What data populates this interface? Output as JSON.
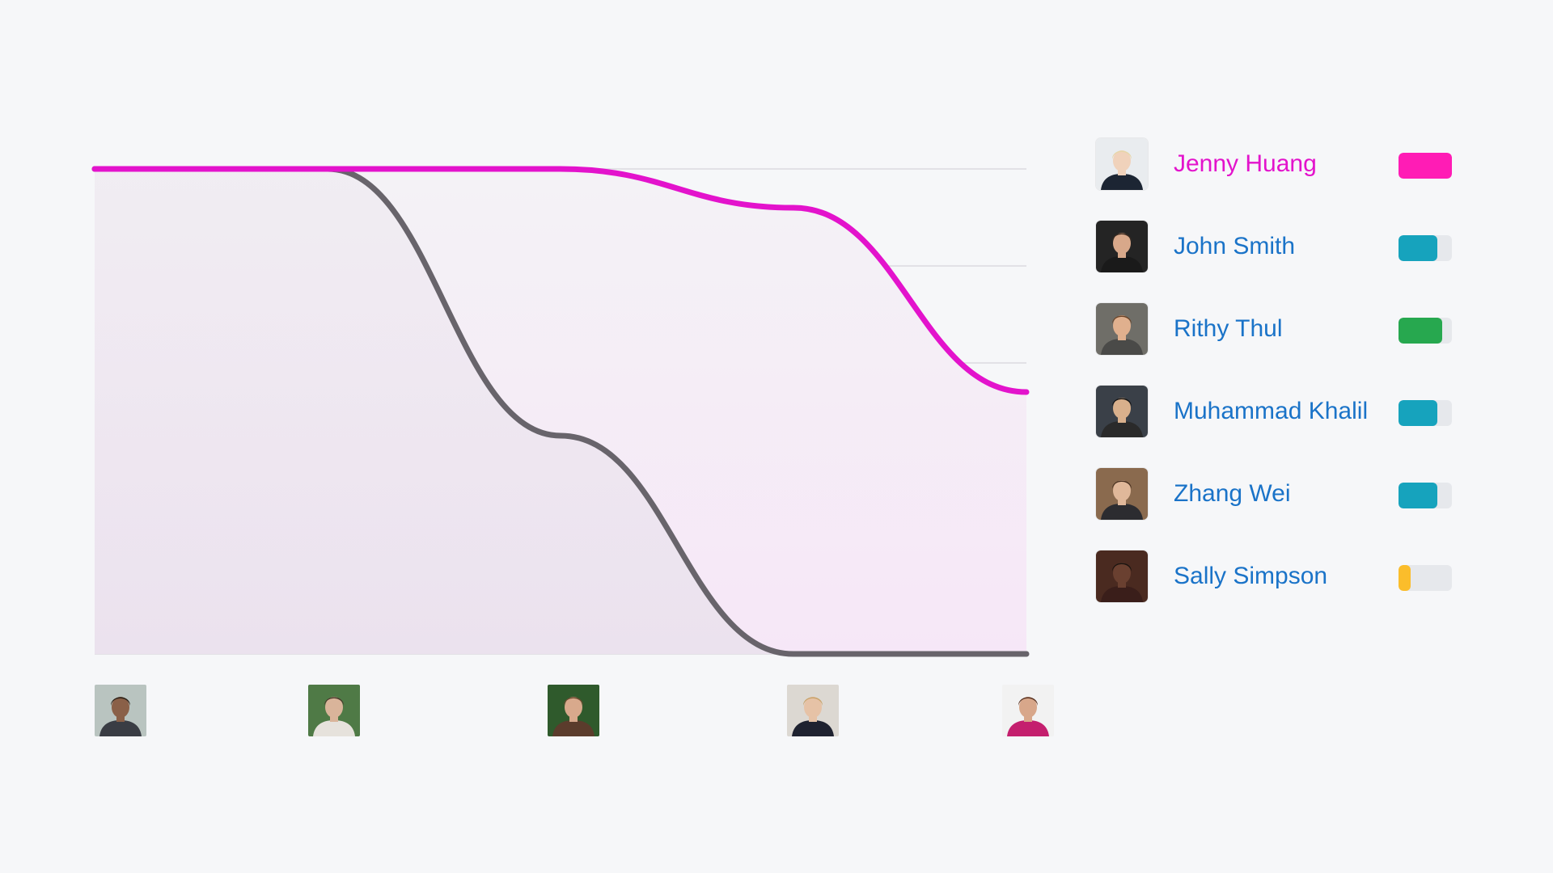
{
  "chart_data": {
    "type": "line",
    "x": [
      0,
      1,
      2,
      3,
      4
    ],
    "ylim": [
      0,
      5
    ],
    "grid": true,
    "series": [
      {
        "name": "Jenny Huang",
        "color": "#e313cc",
        "values": [
          5,
          5,
          5,
          4.6,
          2.7
        ]
      },
      {
        "name": "",
        "color": "#68646b",
        "values": [
          5,
          5,
          2.25,
          0,
          0
        ]
      }
    ]
  },
  "x_avatars": [
    {
      "icon": "person-portrait-icon",
      "skin": "#8a6048",
      "hair": "#2a2018",
      "shirt": "#3a3d44",
      "bg": "#b9c4c0"
    },
    {
      "icon": "person-portrait-icon",
      "skin": "#d9b49a",
      "hair": "#4a3a2c",
      "shirt": "#e6e2dc",
      "bg": "#4f7a46"
    },
    {
      "icon": "person-portrait-icon",
      "skin": "#d8a98c",
      "hair": "#6b4a30",
      "shirt": "#5b3c2c",
      "bg": "#2f5a2c"
    },
    {
      "icon": "person-portrait-icon",
      "skin": "#e6c2a6",
      "hair": "#c9a36a",
      "shirt": "#1f2230",
      "bg": "#dcd8d2"
    },
    {
      "icon": "person-portrait-icon",
      "skin": "#d8a78a",
      "hair": "#5a3322",
      "shirt": "#c41f6e",
      "bg": "#f2f2f2"
    }
  ],
  "legend": [
    {
      "name": "Jenny Huang",
      "name_color": "#e313cc",
      "bar_color": "#ff1cb5",
      "fill": 1.0,
      "skin": "#f0d2bb",
      "hair": "#e6d6a8",
      "shirt": "#1c2533",
      "bg": "#e9ecef"
    },
    {
      "name": "John Smith",
      "name_color": "#1a73c8",
      "bar_color": "#16a3bd",
      "fill": 0.72,
      "skin": "#d8a88a",
      "hair": "#3a2a20",
      "shirt": "#1a1a1a",
      "bg": "#242424"
    },
    {
      "name": "Rithy Thul",
      "name_color": "#1a73c8",
      "bar_color": "#27a84f",
      "fill": 0.82,
      "skin": "#e0b08e",
      "hair": "#6b4428",
      "shirt": "#4a4a48",
      "bg": "#6f6e68"
    },
    {
      "name": "Muhammad Khalil",
      "name_color": "#1a73c8",
      "bar_color": "#16a3bd",
      "fill": 0.72,
      "skin": "#d9b08c",
      "hair": "#141414",
      "shirt": "#2a2a2a",
      "bg": "#3a4048"
    },
    {
      "name": "Zhang Wei",
      "name_color": "#1a73c8",
      "bar_color": "#16a3bd",
      "fill": 0.72,
      "skin": "#e0b89a",
      "hair": "#4a3222",
      "shirt": "#2c2c30",
      "bg": "#8a6a4e"
    },
    {
      "name": "Sally Simpson",
      "name_color": "#1a73c8",
      "bar_color": "#fbbd2b",
      "fill": 0.22,
      "skin": "#6a4030",
      "hair": "#1a1410",
      "shirt": "#3a1e1a",
      "bg": "#4a2a20"
    }
  ]
}
